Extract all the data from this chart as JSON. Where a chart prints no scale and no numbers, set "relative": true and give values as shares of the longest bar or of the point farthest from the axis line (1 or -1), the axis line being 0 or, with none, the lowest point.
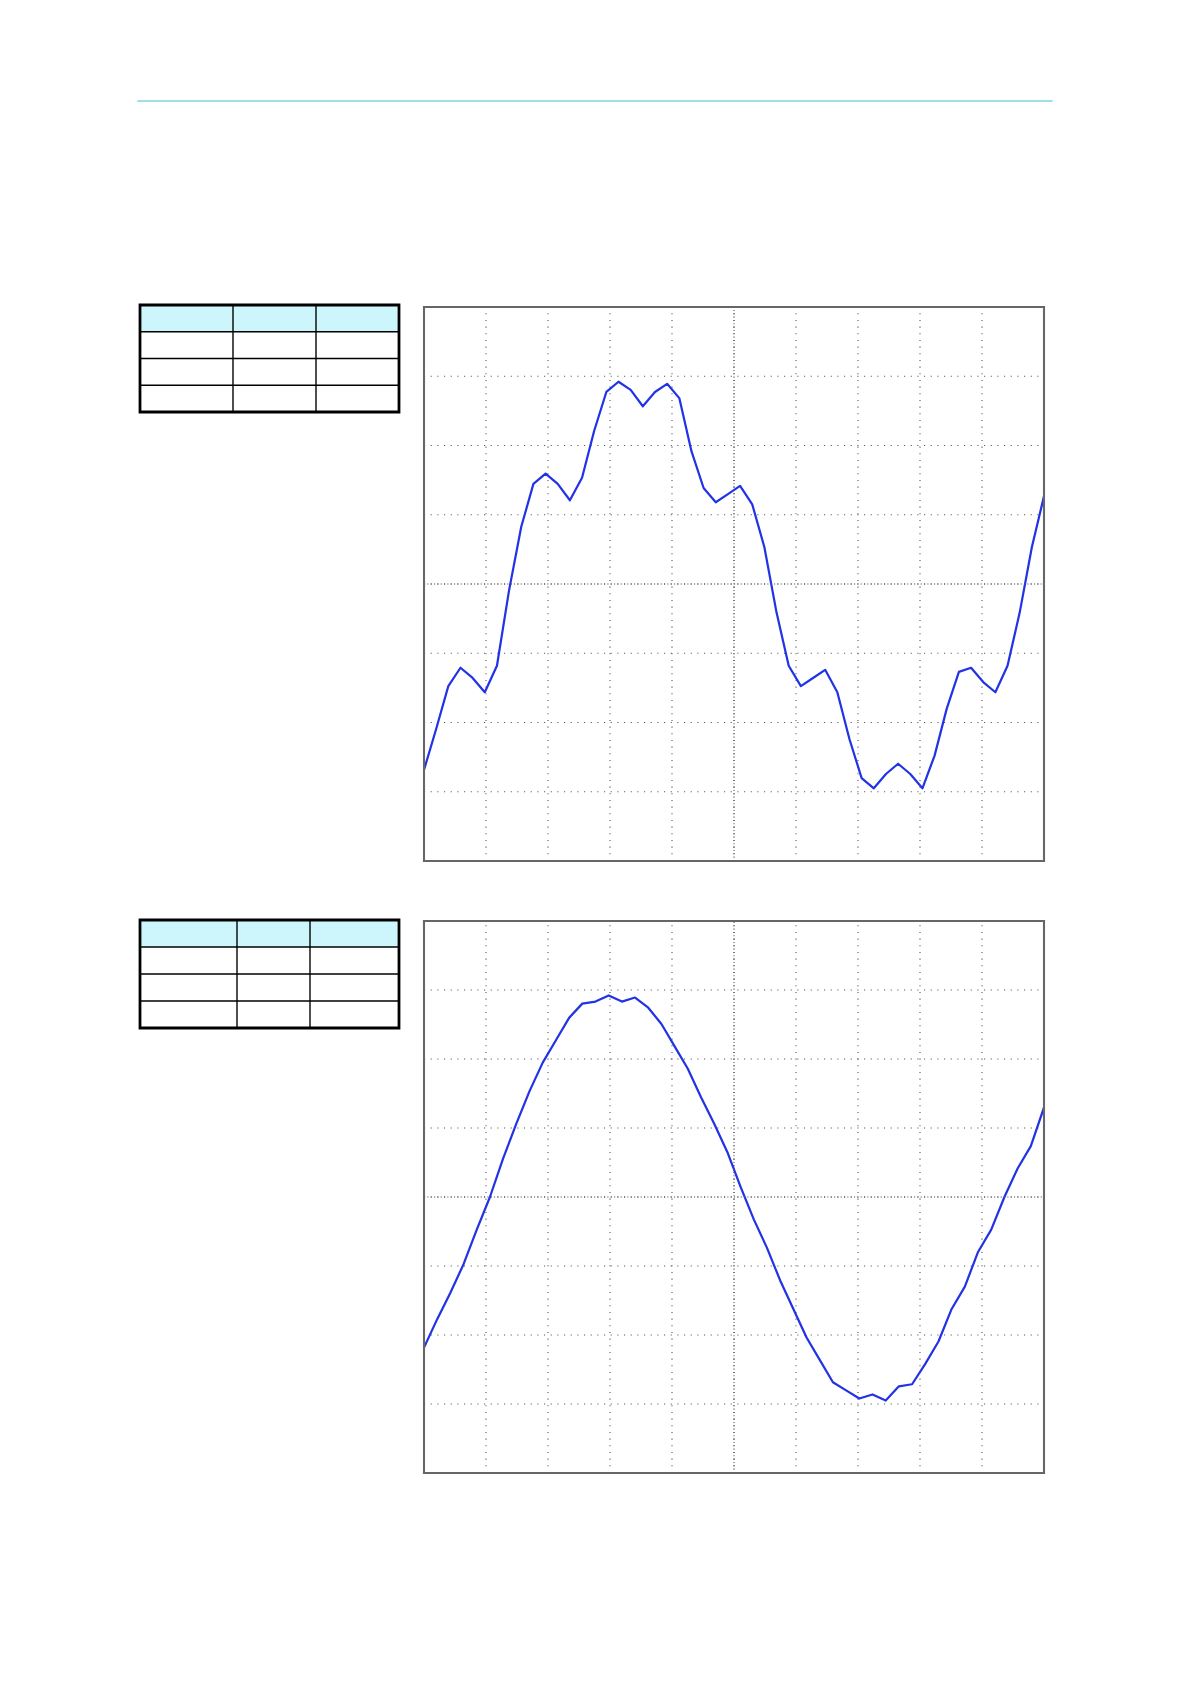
{
  "chart_data": [
    {
      "type": "line",
      "relative": true,
      "grid": true,
      "tick_labels": false,
      "color": "#2233e6",
      "categories": [
        null,
        null,
        null,
        null,
        null,
        null,
        null,
        null,
        null,
        null,
        null,
        null,
        null,
        null,
        null,
        null,
        null,
        null,
        null,
        null,
        null,
        null,
        null,
        null,
        null,
        null,
        null,
        null,
        null,
        null,
        null,
        null,
        null,
        null,
        null,
        null,
        null,
        null,
        null,
        null,
        null,
        null,
        null,
        null,
        null,
        null,
        null,
        null,
        null,
        null,
        null,
        null
      ],
      "values": [
        -0.91,
        -0.71,
        -0.5,
        -0.41,
        -0.46,
        -0.53,
        -0.4,
        -0.03,
        0.28,
        0.49,
        0.54,
        0.49,
        0.41,
        0.52,
        0.75,
        0.94,
        0.99,
        0.95,
        0.87,
        0.94,
        0.98,
        0.91,
        0.65,
        0.47,
        0.4,
        0.44,
        0.48,
        0.39,
        0.18,
        -0.14,
        -0.4,
        -0.5,
        -0.46,
        -0.42,
        -0.53,
        -0.76,
        -0.95,
        -1.0,
        -0.93,
        -0.88,
        -0.93,
        -1.0,
        -0.84,
        -0.61,
        -0.43,
        -0.41,
        -0.48,
        -0.53,
        -0.4,
        -0.14,
        0.18,
        0.43
      ]
    },
    {
      "type": "line",
      "relative": true,
      "grid": true,
      "tick_labels": false,
      "color": "#2233e6",
      "categories": [
        null,
        null,
        null,
        null,
        null,
        null,
        null,
        null,
        null,
        null,
        null,
        null,
        null,
        null,
        null,
        null,
        null,
        null,
        null,
        null,
        null,
        null,
        null,
        null,
        null,
        null,
        null,
        null,
        null,
        null,
        null,
        null,
        null,
        null,
        null,
        null,
        null,
        null,
        null,
        null,
        null,
        null,
        null,
        null,
        null,
        null,
        null,
        null
      ],
      "values": [
        -0.74,
        -0.6,
        -0.47,
        -0.33,
        -0.16,
        0.0,
        0.19,
        0.36,
        0.52,
        0.66,
        0.77,
        0.88,
        0.95,
        0.96,
        0.99,
        0.96,
        0.98,
        0.93,
        0.85,
        0.74,
        0.63,
        0.49,
        0.36,
        0.22,
        0.05,
        -0.11,
        -0.25,
        -0.41,
        -0.55,
        -0.69,
        -0.8,
        -0.91,
        -0.95,
        -0.99,
        -0.97,
        -1.0,
        -0.93,
        -0.92,
        -0.82,
        -0.71,
        -0.55,
        -0.44,
        -0.27,
        -0.16,
        0.0,
        0.14,
        0.25,
        0.44
      ]
    }
  ]
}
